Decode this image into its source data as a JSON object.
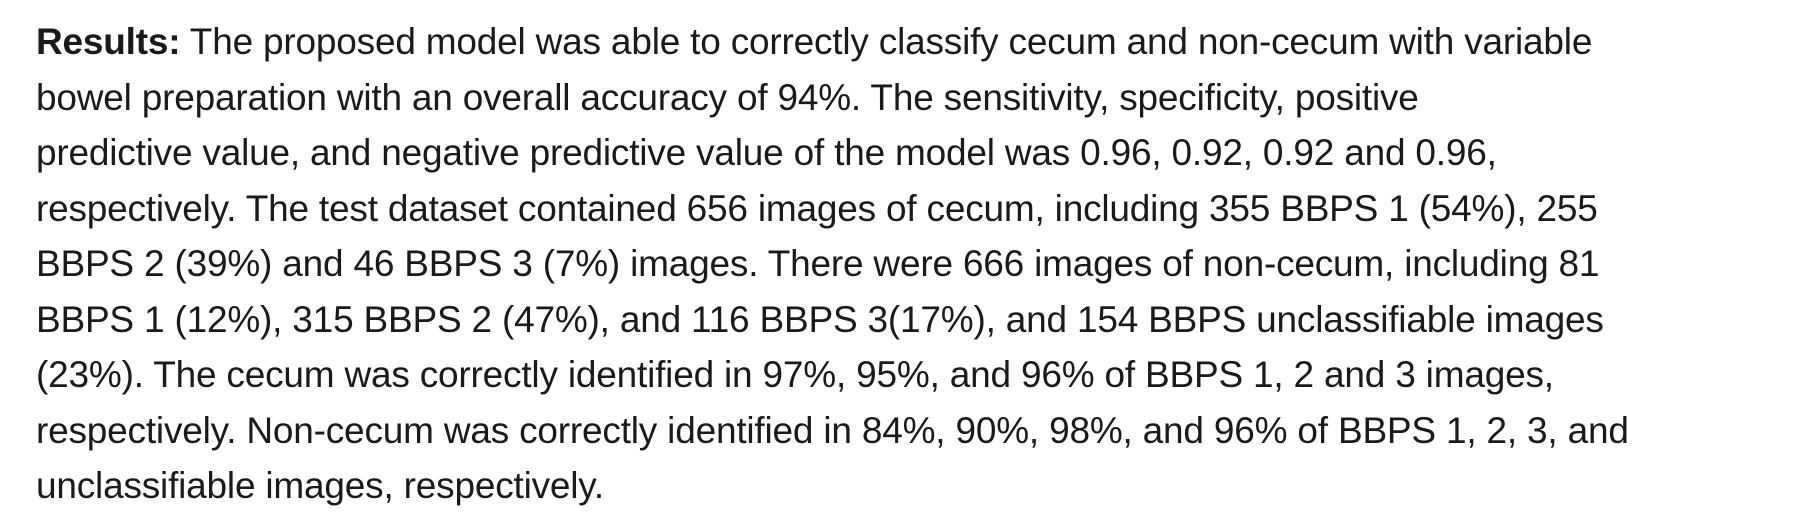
{
  "section": {
    "label": "Results:",
    "lines": [
      " The proposed model was able to correctly classify cecum and non-cecum with variable",
      "bowel preparation with an overall accuracy of 94%. The sensitivity, specificity, positive",
      "predictive value, and negative predictive value of the model was 0.96, 0.92, 0.92 and 0.96,",
      "respectively.  The test dataset contained 656 images of cecum, including 355 BBPS 1 (54%), 255",
      "BBPS 2 (39%) and 46 BBPS 3 (7%) images. There were 666 images of non-cecum, including 81",
      "BBPS 1 (12%), 315 BBPS 2 (47%), and 116 BBPS 3(17%), and 154 BBPS unclassifiable images",
      "(23%). The cecum was correctly identified in 97%, 95%, and 96% of BBPS 1, 2 and 3 images,",
      "respectively. Non-cecum was correctly identified in 84%, 90%, 98%, and 96% of BBPS 1, 2, 3, and",
      "unclassifiable images, respectively."
    ]
  }
}
